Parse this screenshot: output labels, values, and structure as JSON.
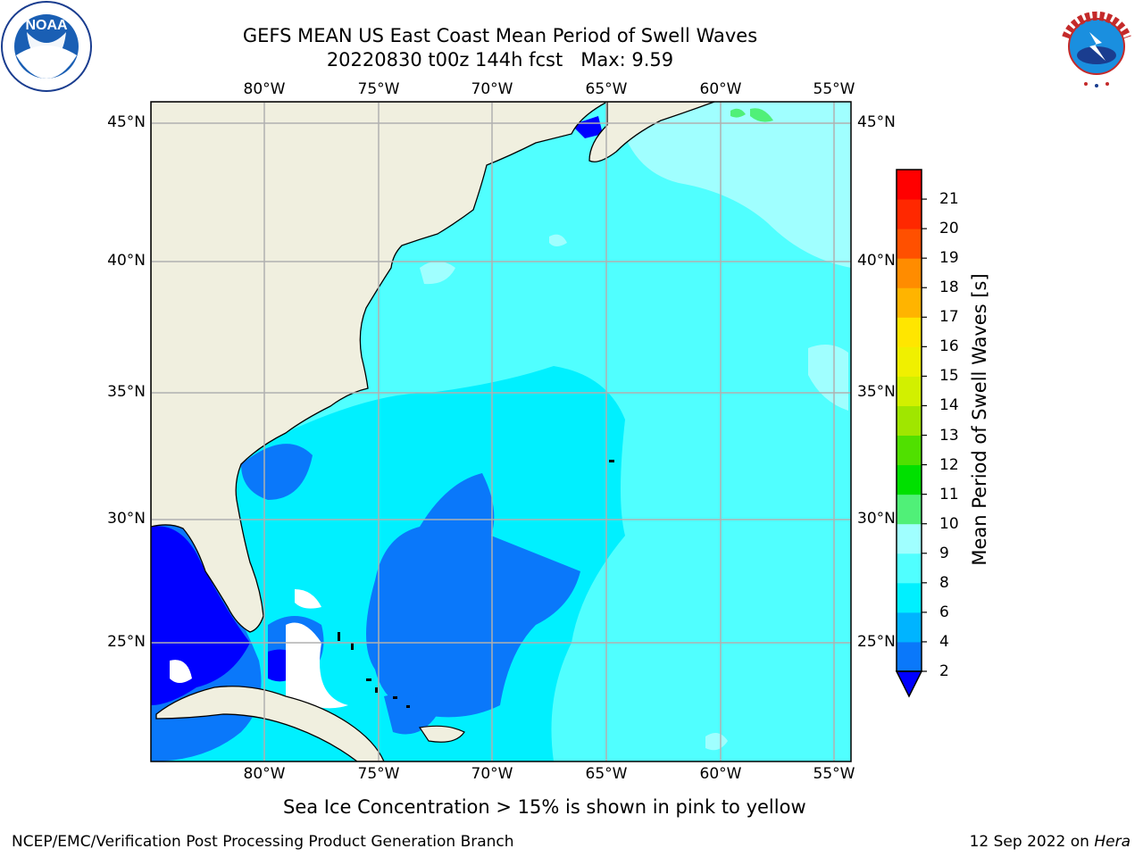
{
  "title": {
    "line1": "GEFS MEAN US East Coast Mean Period of Swell Waves",
    "line2": "20220830 t00z 144h fcst   Max: 9.59"
  },
  "logos": {
    "left": {
      "icon": "noaa-logo-icon",
      "text": "NOAA",
      "ring_text": "NATIONAL OCEANIC AND ATMOSPHERIC ADMINISTRATION · U.S. DEPARTMENT OF COMMERCE"
    },
    "right": {
      "icon": "nws-logo-icon",
      "ring_text": "NATIONAL WEATHER SERVICE"
    }
  },
  "map": {
    "lon_labels": [
      "80°W",
      "75°W",
      "70°W",
      "65°W",
      "60°W",
      "55°W"
    ],
    "lat_labels": [
      "45°N",
      "40°N",
      "35°N",
      "30°N",
      "25°N"
    ],
    "colors": {
      "land": "#f0efdf",
      "coast": "#000000",
      "grid": "#b0b0b0",
      "no_data": "#ffffff"
    }
  },
  "colorbar": {
    "label": "Mean Period of Swell Waves [s]",
    "ticks": [
      "2",
      "4",
      "6",
      "8",
      "9",
      "10",
      "11",
      "12",
      "13",
      "14",
      "15",
      "16",
      "17",
      "18",
      "19",
      "20",
      "21"
    ],
    "colors": [
      "#0a78fa",
      "#00b4ff",
      "#00f0ff",
      "#50ffff",
      "#a0ffff",
      "#50f078",
      "#00e000",
      "#50e000",
      "#a0e600",
      "#d2f000",
      "#f0f000",
      "#ffe600",
      "#ffb400",
      "#ff8c00",
      "#ff5000",
      "#ff2800",
      "#ff0000"
    ],
    "under_color": "#0000ff",
    "extend": "min"
  },
  "caption": "Sea Ice Concentration > 15% is shown in pink to yellow",
  "footer": {
    "left": "NCEP/EMC/Verification Post Processing Product Generation Branch",
    "right_date": "12 Sep 2022 on ",
    "right_host": "Hera"
  }
}
